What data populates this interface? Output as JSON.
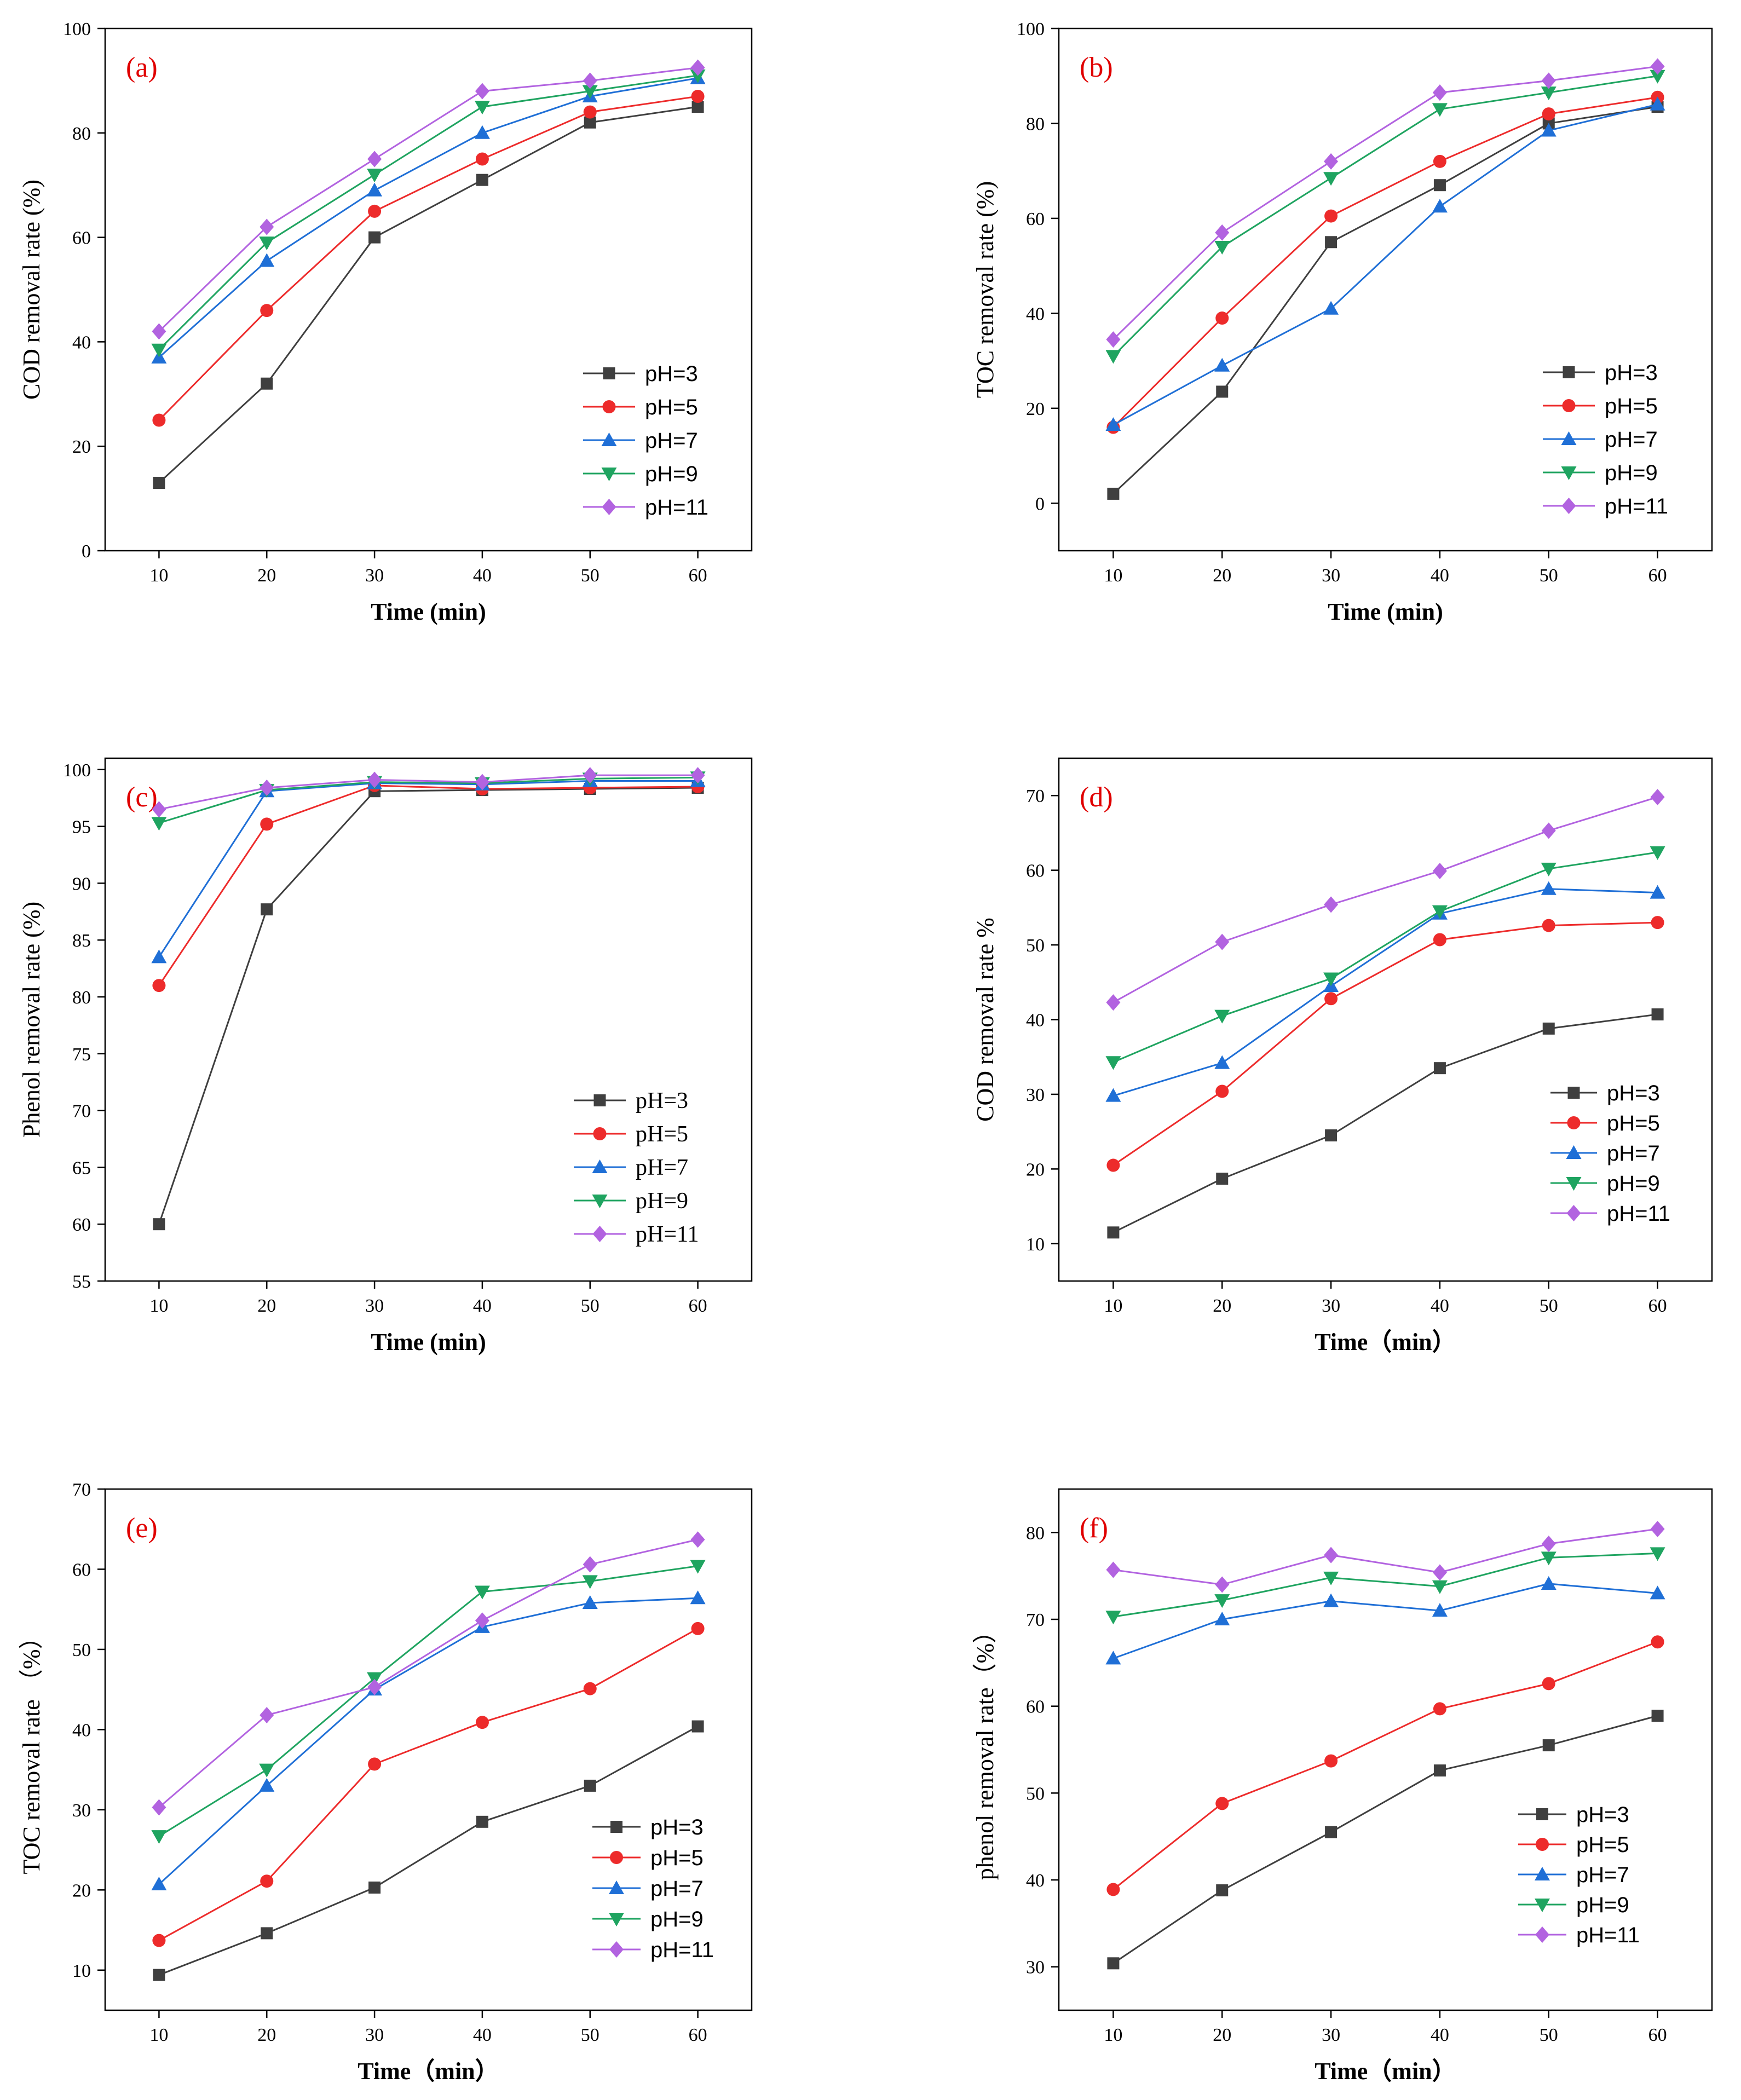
{
  "chart_data": [
    {
      "type": "line",
      "panel": "(a)",
      "xlabel": "Time (min)",
      "ylabel": "COD removal rate (%)",
      "x": [
        10,
        20,
        30,
        40,
        50,
        60
      ],
      "xlim": [
        5,
        65
      ],
      "ylim": [
        0,
        100
      ],
      "yticks": [
        0,
        20,
        40,
        60,
        80,
        100
      ],
      "series": [
        {
          "name": "pH=3",
          "color": "#3f3f3f",
          "marker": "square",
          "values": [
            13,
            32,
            60,
            71,
            82,
            85
          ]
        },
        {
          "name": "pH=5",
          "color": "#ed2b2b",
          "marker": "circle",
          "values": [
            25,
            46,
            65,
            75,
            84,
            87
          ]
        },
        {
          "name": "pH=7",
          "color": "#1f6fd6",
          "marker": "triangle-up",
          "values": [
            37,
            55.5,
            69,
            80,
            87,
            90.5
          ]
        },
        {
          "name": "pH=9",
          "color": "#1fa460",
          "marker": "triangle-down",
          "values": [
            38.5,
            59,
            72,
            85,
            88,
            91
          ]
        },
        {
          "name": "pH=11",
          "color": "#b263e0",
          "marker": "diamond",
          "values": [
            42,
            62,
            75,
            88,
            90,
            92.5
          ]
        }
      ]
    },
    {
      "type": "line",
      "panel": "(b)",
      "xlabel": "Time (min)",
      "ylabel": "TOC removal rate (%)",
      "x": [
        10,
        20,
        30,
        40,
        50,
        60
      ],
      "xlim": [
        5,
        65
      ],
      "ylim": [
        -10,
        100
      ],
      "yticks": [
        0,
        20,
        40,
        60,
        80,
        100
      ],
      "series": [
        {
          "name": "pH=3",
          "color": "#3f3f3f",
          "marker": "square",
          "values": [
            2,
            23.5,
            55,
            67,
            80,
            83.5
          ]
        },
        {
          "name": "pH=5",
          "color": "#ed2b2b",
          "marker": "circle",
          "values": [
            16,
            39,
            60.5,
            72,
            82,
            85.5
          ]
        },
        {
          "name": "pH=7",
          "color": "#1f6fd6",
          "marker": "triangle-up",
          "values": [
            16.5,
            29,
            41,
            62.5,
            78.5,
            84
          ]
        },
        {
          "name": "pH=9",
          "color": "#1fa460",
          "marker": "triangle-down",
          "values": [
            31,
            54,
            68.5,
            83,
            86.5,
            90
          ]
        },
        {
          "name": "pH=11",
          "color": "#b263e0",
          "marker": "diamond",
          "values": [
            34.5,
            57,
            72,
            86.5,
            89,
            92
          ]
        }
      ]
    },
    {
      "type": "line",
      "panel": "(c)",
      "xlabel": "Time (min)",
      "ylabel": "Phenol removal rate (%)",
      "x": [
        10,
        20,
        30,
        40,
        50,
        60
      ],
      "xlim": [
        5,
        65
      ],
      "ylim": [
        55,
        101
      ],
      "yticks": [
        55,
        60,
        65,
        70,
        75,
        80,
        85,
        90,
        95,
        100
      ],
      "series": [
        {
          "name": "pH=3",
          "color": "#3f3f3f",
          "marker": "square",
          "values": [
            60,
            87.7,
            98.1,
            98.2,
            98.3,
            98.4
          ]
        },
        {
          "name": "pH=5",
          "color": "#ed2b2b",
          "marker": "circle",
          "values": [
            81,
            95.2,
            98.6,
            98.3,
            98.4,
            98.5
          ]
        },
        {
          "name": "pH=7",
          "color": "#1f6fd6",
          "marker": "triangle-up",
          "values": [
            83.5,
            98.1,
            98.8,
            98.7,
            99,
            99
          ]
        },
        {
          "name": "pH=9",
          "color": "#1fa460",
          "marker": "triangle-down",
          "values": [
            95.3,
            98.2,
            98.9,
            98.8,
            99.2,
            99.3
          ]
        },
        {
          "name": "pH=11",
          "color": "#b263e0",
          "marker": "diamond",
          "values": [
            96.5,
            98.4,
            99.1,
            98.9,
            99.5,
            99.5
          ]
        }
      ]
    },
    {
      "type": "line",
      "panel": "(d)",
      "xlabel": "Time（min）",
      "ylabel": "COD removal rate %",
      "x": [
        10,
        20,
        30,
        40,
        50,
        60
      ],
      "xlim": [
        5,
        65
      ],
      "ylim": [
        5,
        75
      ],
      "yticks": [
        10,
        20,
        30,
        40,
        50,
        60,
        70
      ],
      "series": [
        {
          "name": "pH=3",
          "color": "#3f3f3f",
          "marker": "square",
          "values": [
            11.5,
            18.7,
            24.5,
            33.5,
            38.8,
            40.7
          ]
        },
        {
          "name": "pH=5",
          "color": "#ed2b2b",
          "marker": "circle",
          "values": [
            20.5,
            30.4,
            42.8,
            50.7,
            52.6,
            53
          ]
        },
        {
          "name": "pH=7",
          "color": "#1f6fd6",
          "marker": "triangle-up",
          "values": [
            29.8,
            34.2,
            44.5,
            54.2,
            57.5,
            57
          ]
        },
        {
          "name": "pH=9",
          "color": "#1fa460",
          "marker": "triangle-down",
          "values": [
            34.3,
            40.5,
            45.5,
            54.5,
            60.2,
            62.4
          ]
        },
        {
          "name": "pH=11",
          "color": "#b263e0",
          "marker": "diamond",
          "values": [
            42.3,
            50.4,
            55.4,
            59.9,
            65.3,
            69.8
          ]
        }
      ]
    },
    {
      "type": "line",
      "panel": "(e)",
      "xlabel": "Time（min）",
      "ylabel": "TOC removal rate （%）",
      "x": [
        10,
        20,
        30,
        40,
        50,
        60
      ],
      "xlim": [
        5,
        65
      ],
      "ylim": [
        5,
        70
      ],
      "yticks": [
        10,
        20,
        30,
        40,
        50,
        60,
        70
      ],
      "series": [
        {
          "name": "pH=3",
          "color": "#3f3f3f",
          "marker": "square",
          "values": [
            9.4,
            14.6,
            20.3,
            28.5,
            33,
            40.4
          ]
        },
        {
          "name": "pH=5",
          "color": "#ed2b2b",
          "marker": "circle",
          "values": [
            13.7,
            21.1,
            35.7,
            40.9,
            45.1,
            52.6
          ]
        },
        {
          "name": "pH=7",
          "color": "#1f6fd6",
          "marker": "triangle-up",
          "values": [
            20.7,
            33,
            45,
            52.8,
            55.8,
            56.4
          ]
        },
        {
          "name": "pH=9",
          "color": "#1fa460",
          "marker": "triangle-down",
          "values": [
            26.7,
            35,
            46.4,
            57.2,
            58.5,
            60.4
          ]
        },
        {
          "name": "pH=11",
          "color": "#b263e0",
          "marker": "diamond",
          "values": [
            30.3,
            41.8,
            45.3,
            53.6,
            60.6,
            63.7
          ]
        }
      ]
    },
    {
      "type": "line",
      "panel": "(f)",
      "xlabel": "Time（min）",
      "ylabel": "phenol removal rate（%）",
      "x": [
        10,
        20,
        30,
        40,
        50,
        60
      ],
      "xlim": [
        5,
        65
      ],
      "ylim": [
        25,
        85
      ],
      "yticks": [
        30,
        40,
        50,
        60,
        70,
        80
      ],
      "series": [
        {
          "name": "pH=3",
          "color": "#3f3f3f",
          "marker": "square",
          "values": [
            30.4,
            38.8,
            45.5,
            52.6,
            55.5,
            58.9
          ]
        },
        {
          "name": "pH=5",
          "color": "#ed2b2b",
          "marker": "circle",
          "values": [
            38.9,
            48.8,
            53.7,
            59.7,
            62.6,
            67.4
          ]
        },
        {
          "name": "pH=7",
          "color": "#1f6fd6",
          "marker": "triangle-up",
          "values": [
            65.5,
            70,
            72.1,
            71,
            74.1,
            73
          ]
        },
        {
          "name": "pH=9",
          "color": "#1fa460",
          "marker": "triangle-down",
          "values": [
            70.3,
            72.2,
            74.8,
            73.8,
            77.1,
            77.6
          ]
        },
        {
          "name": "pH=11",
          "color": "#b263e0",
          "marker": "diamond",
          "values": [
            75.7,
            74,
            77.4,
            75.4,
            78.7,
            80.4
          ]
        }
      ]
    }
  ]
}
